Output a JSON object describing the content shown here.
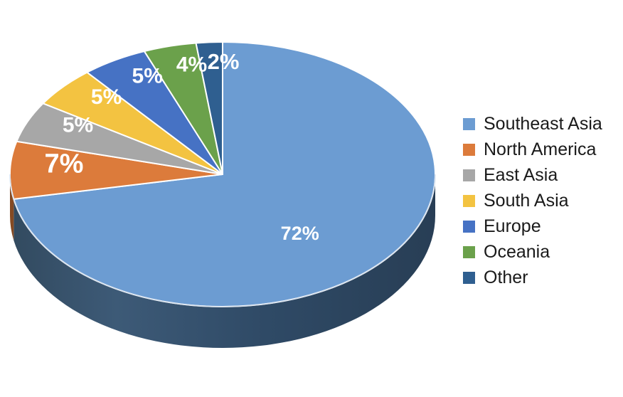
{
  "chart_data": {
    "type": "pie",
    "style": "3d",
    "title": "",
    "legend_position": "right",
    "background_color": "#FFFFFF",
    "data_label_color": "#FFFFFF",
    "legend_text_color": "#1A1A1A",
    "labels": [
      "Southeast Asia",
      "North America",
      "East Asia",
      "South Asia",
      "Europe",
      "Oceania",
      "Other"
    ],
    "values": [
      72,
      7,
      5,
      5,
      5,
      4,
      2
    ],
    "data_labels": [
      "72%",
      "7%",
      "5%",
      "5%",
      "5%",
      "4%",
      "2%"
    ],
    "colors": [
      "#6C9CD2",
      "#DC7B3B",
      "#A7A7A7",
      "#F3C341",
      "#4672C4",
      "#6BA14B",
      "#2F5F90"
    ],
    "wall_gradient": [
      "#324A5F",
      "#3D5A77",
      "#2F4A66",
      "#283E55"
    ],
    "rim_highlight_color": "#D8E2EE"
  }
}
